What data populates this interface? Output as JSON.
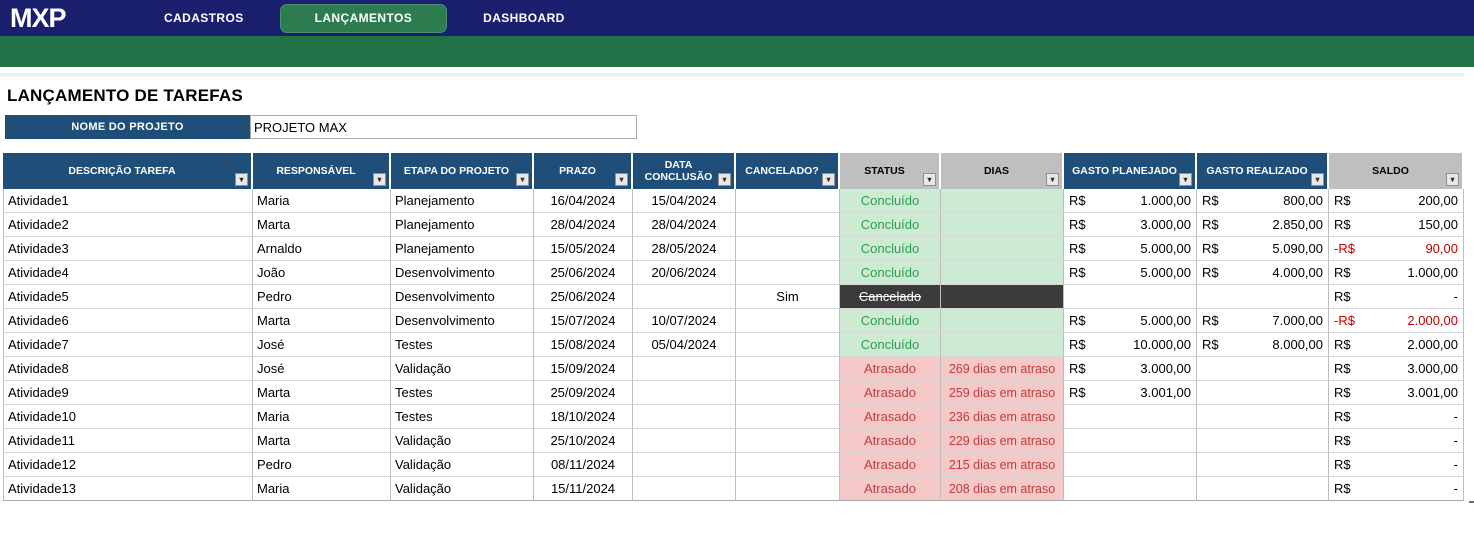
{
  "brand": {
    "logo_text": "MXP"
  },
  "nav": {
    "tabs": [
      {
        "label": "CADASTROS",
        "active": false
      },
      {
        "label": "LANÇAMENTOS",
        "active": true
      },
      {
        "label": "DASHBOARD",
        "active": false
      }
    ]
  },
  "page": {
    "title": "LANÇAMENTO DE TAREFAS"
  },
  "project": {
    "label": "NOME DO PROJETO",
    "value": "PROJETO MAX"
  },
  "table": {
    "currency_symbol": "R$",
    "negative_symbol": "-R$",
    "columns": [
      {
        "key": "desc",
        "label": "DESCRIÇÃO TAREFA",
        "header": "blue",
        "type": "text",
        "align": "left"
      },
      {
        "key": "resp",
        "label": "RESPONSÁVEL",
        "header": "blue",
        "type": "text",
        "align": "left"
      },
      {
        "key": "etapa",
        "label": "ETAPA DO PROJETO",
        "header": "blue",
        "type": "text",
        "align": "left"
      },
      {
        "key": "prazo",
        "label": "PRAZO",
        "header": "blue",
        "type": "text",
        "align": "center"
      },
      {
        "key": "conclusao",
        "label": "DATA CONCLUSÃO",
        "header": "blue",
        "type": "text",
        "align": "center"
      },
      {
        "key": "cancelado",
        "label": "CANCELADO?",
        "header": "blue",
        "type": "text",
        "align": "center"
      },
      {
        "key": "status",
        "label": "STATUS",
        "header": "gray",
        "type": "status",
        "align": "center"
      },
      {
        "key": "dias",
        "label": "DIAS",
        "header": "gray",
        "type": "dias",
        "align": "center"
      },
      {
        "key": "gasto_planejado",
        "label": "GASTO PLANEJADO",
        "header": "blue",
        "type": "money",
        "align": "right"
      },
      {
        "key": "gasto_realizado",
        "label": "GASTO REALIZADO",
        "header": "blue",
        "type": "money",
        "align": "right"
      },
      {
        "key": "saldo",
        "label": "SALDO",
        "header": "gray",
        "type": "money",
        "align": "right"
      }
    ],
    "rows": [
      {
        "desc": "Atividade1",
        "resp": "Maria",
        "etapa": "Planejamento",
        "prazo": "16/04/2024",
        "conclusao": "15/04/2024",
        "cancelado": "",
        "status": "Concluído",
        "status_kind": "done",
        "dias": "",
        "gasto_planejado": "1.000,00",
        "gasto_realizado": "800,00",
        "saldo": "200,00",
        "saldo_negative": false
      },
      {
        "desc": "Atividade2",
        "resp": "Marta",
        "etapa": "Planejamento",
        "prazo": "28/04/2024",
        "conclusao": "28/04/2024",
        "cancelado": "",
        "status": "Concluído",
        "status_kind": "done",
        "dias": "",
        "gasto_planejado": "3.000,00",
        "gasto_realizado": "2.850,00",
        "saldo": "150,00",
        "saldo_negative": false
      },
      {
        "desc": "Atividade3",
        "resp": "Arnaldo",
        "etapa": "Planejamento",
        "prazo": "15/05/2024",
        "conclusao": "28/05/2024",
        "cancelado": "",
        "status": "Concluído",
        "status_kind": "done",
        "dias": "",
        "gasto_planejado": "5.000,00",
        "gasto_realizado": "5.090,00",
        "saldo": "90,00",
        "saldo_negative": true
      },
      {
        "desc": "Atividade4",
        "resp": "João",
        "etapa": "Desenvolvimento",
        "prazo": "25/06/2024",
        "conclusao": "20/06/2024",
        "cancelado": "",
        "status": "Concluído",
        "status_kind": "done",
        "dias": "",
        "gasto_planejado": "5.000,00",
        "gasto_realizado": "4.000,00",
        "saldo": "1.000,00",
        "saldo_negative": false
      },
      {
        "desc": "Atividade5",
        "resp": "Pedro",
        "etapa": "Desenvolvimento",
        "prazo": "25/06/2024",
        "conclusao": "",
        "cancelado": "Sim",
        "status": "Cancelado",
        "status_kind": "cancel",
        "dias": "",
        "gasto_planejado": "",
        "gasto_realizado": "",
        "saldo": "-",
        "saldo_negative": false
      },
      {
        "desc": "Atividade6",
        "resp": "Marta",
        "etapa": "Desenvolvimento",
        "prazo": "15/07/2024",
        "conclusao": "10/07/2024",
        "cancelado": "",
        "status": "Concluído",
        "status_kind": "done",
        "dias": "",
        "gasto_planejado": "5.000,00",
        "gasto_realizado": "7.000,00",
        "saldo": "2.000,00",
        "saldo_negative": true
      },
      {
        "desc": "Atividade7",
        "resp": "José",
        "etapa": "Testes",
        "prazo": "15/08/2024",
        "conclusao": "05/04/2024",
        "cancelado": "",
        "status": "Concluído",
        "status_kind": "done",
        "dias": "",
        "gasto_planejado": "10.000,00",
        "gasto_realizado": "8.000,00",
        "saldo": "2.000,00",
        "saldo_negative": false
      },
      {
        "desc": "Atividade8",
        "resp": "José",
        "etapa": "Validação",
        "prazo": "15/09/2024",
        "conclusao": "",
        "cancelado": "",
        "status": "Atrasado",
        "status_kind": "late",
        "dias": "269 dias em atraso",
        "gasto_planejado": "3.000,00",
        "gasto_realizado": "",
        "saldo": "3.000,00",
        "saldo_negative": false
      },
      {
        "desc": "Atividade9",
        "resp": "Marta",
        "etapa": "Testes",
        "prazo": "25/09/2024",
        "conclusao": "",
        "cancelado": "",
        "status": "Atrasado",
        "status_kind": "late",
        "dias": "259 dias em atraso",
        "gasto_planejado": "3.001,00",
        "gasto_realizado": "",
        "saldo": "3.001,00",
        "saldo_negative": false
      },
      {
        "desc": "Atividade10",
        "resp": "Maria",
        "etapa": "Testes",
        "prazo": "18/10/2024",
        "conclusao": "",
        "cancelado": "",
        "status": "Atrasado",
        "status_kind": "late",
        "dias": "236 dias em atraso",
        "gasto_planejado": "",
        "gasto_realizado": "",
        "saldo": "-",
        "saldo_negative": false
      },
      {
        "desc": "Atividade11",
        "resp": "Marta",
        "etapa": "Validação",
        "prazo": "25/10/2024",
        "conclusao": "",
        "cancelado": "",
        "status": "Atrasado",
        "status_kind": "late",
        "dias": "229 dias em atraso",
        "gasto_planejado": "",
        "gasto_realizado": "",
        "saldo": "-",
        "saldo_negative": false
      },
      {
        "desc": "Atividade12",
        "resp": "Pedro",
        "etapa": "Validação",
        "prazo": "08/11/2024",
        "conclusao": "",
        "cancelado": "",
        "status": "Atrasado",
        "status_kind": "late",
        "dias": "215 dias em atraso",
        "gasto_planejado": "",
        "gasto_realizado": "",
        "saldo": "-",
        "saldo_negative": false
      },
      {
        "desc": "Atividade13",
        "resp": "Maria",
        "etapa": "Validação",
        "prazo": "15/11/2024",
        "conclusao": "",
        "cancelado": "",
        "status": "Atrasado",
        "status_kind": "late",
        "dias": "208 dias em atraso",
        "gasto_planejado": "",
        "gasto_realizado": "",
        "saldo": "-",
        "saldo_negative": false
      }
    ]
  },
  "colors": {
    "navbar": "#1A206E",
    "ribbon_green": "#217347",
    "active_tab_green": "#2C7C50",
    "header_blue": "#1F4E79",
    "header_gray": "#BFBFBF",
    "status_done_bg": "#CDEBD3",
    "status_done_text": "#2E9E50",
    "status_late_bg": "#F6C9C9",
    "status_late_text": "#C13C3C",
    "status_cancel_bg": "#3B3B3B",
    "status_cancel_text": "#FFFFFF",
    "negative_red": "#C00000"
  }
}
